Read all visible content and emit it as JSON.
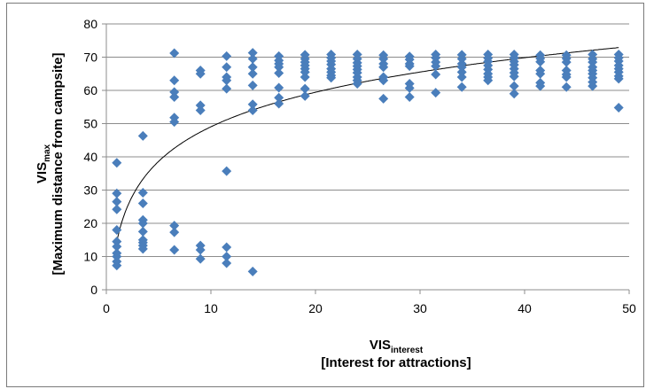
{
  "chart_data": {
    "type": "scatter",
    "xlabel_main": "VIS",
    "xlabel_sub": "interest",
    "xlabel_line2": "[Interest for attractions]",
    "ylabel_main": "VIS",
    "ylabel_sub": "max",
    "ylabel_line2": "[Maximum distance from campsite]",
    "xlim": [
      0,
      50
    ],
    "ylim": [
      0,
      80
    ],
    "x_ticks": [
      "0",
      "10",
      "20",
      "30",
      "40",
      "50"
    ],
    "y_ticks": [
      "0",
      "10",
      "20",
      "30",
      "40",
      "50",
      "60",
      "70",
      "80"
    ],
    "grid": "horizontal",
    "legend": "none",
    "marker_color": "#4a7ebb",
    "trendline": {
      "type": "logarithmic",
      "a": 15.0,
      "b": 14.5,
      "color": "#000000"
    },
    "points": [
      [
        1,
        38.2
      ],
      [
        1,
        29
      ],
      [
        1,
        26.5
      ],
      [
        1,
        24.2
      ],
      [
        1,
        18
      ],
      [
        1,
        14.5
      ],
      [
        1,
        13
      ],
      [
        1,
        11
      ],
      [
        1,
        10
      ],
      [
        1,
        8.5
      ],
      [
        1,
        7.3
      ],
      [
        3.5,
        46.3
      ],
      [
        3.5,
        29.2
      ],
      [
        3.5,
        26
      ],
      [
        3.5,
        21
      ],
      [
        3.5,
        20
      ],
      [
        3.5,
        17.5
      ],
      [
        3.5,
        15
      ],
      [
        3.5,
        14.2
      ],
      [
        3.5,
        13.3
      ],
      [
        3.5,
        12.3
      ],
      [
        6.5,
        71.2
      ],
      [
        6.5,
        63
      ],
      [
        6.5,
        59.5
      ],
      [
        6.5,
        58
      ],
      [
        6.5,
        51.8
      ],
      [
        6.5,
        50.5
      ],
      [
        6.5,
        19.3
      ],
      [
        6.5,
        17.3
      ],
      [
        6.5,
        12
      ],
      [
        9,
        66
      ],
      [
        9,
        65
      ],
      [
        9,
        55.5
      ],
      [
        9,
        54
      ],
      [
        9,
        13.3
      ],
      [
        9,
        12
      ],
      [
        9,
        9.3
      ],
      [
        11.5,
        70.3
      ],
      [
        11.5,
        67
      ],
      [
        11.5,
        64
      ],
      [
        11.5,
        63
      ],
      [
        11.5,
        60.5
      ],
      [
        11.5,
        35.7
      ],
      [
        11.5,
        12.8
      ],
      [
        11.5,
        10
      ],
      [
        11.5,
        8
      ],
      [
        14,
        71.3
      ],
      [
        14,
        69.5
      ],
      [
        14,
        67
      ],
      [
        14,
        65
      ],
      [
        14,
        61.5
      ],
      [
        14,
        55.8
      ],
      [
        14,
        54
      ],
      [
        14,
        5.5
      ],
      [
        16.5,
        70.3
      ],
      [
        16.5,
        69
      ],
      [
        16.5,
        68
      ],
      [
        16.5,
        67
      ],
      [
        16.5,
        65.2
      ],
      [
        16.5,
        60.8
      ],
      [
        16.5,
        57.8
      ],
      [
        16.5,
        56
      ],
      [
        19,
        70.7
      ],
      [
        19,
        69.5
      ],
      [
        19,
        68.5
      ],
      [
        19,
        67.5
      ],
      [
        19,
        66.5
      ],
      [
        19,
        65.5
      ],
      [
        19,
        64
      ],
      [
        19,
        60.5
      ],
      [
        19,
        58.3
      ],
      [
        21.5,
        70.8
      ],
      [
        21.5,
        69.8
      ],
      [
        21.5,
        68.8
      ],
      [
        21.5,
        67.8
      ],
      [
        21.5,
        66.5
      ],
      [
        21.5,
        65.5
      ],
      [
        21.5,
        64.5
      ],
      [
        21.5,
        63.8
      ],
      [
        24,
        70.8
      ],
      [
        24,
        69.5
      ],
      [
        24,
        68.3
      ],
      [
        24,
        67.3
      ],
      [
        24,
        66.3
      ],
      [
        24,
        65.3
      ],
      [
        24,
        64
      ],
      [
        24,
        63
      ],
      [
        24,
        62
      ],
      [
        26.5,
        70.6
      ],
      [
        26.5,
        69.5
      ],
      [
        26.5,
        68
      ],
      [
        26.5,
        67
      ],
      [
        26.5,
        64
      ],
      [
        26.5,
        63
      ],
      [
        26.5,
        57.5
      ],
      [
        29,
        70.2
      ],
      [
        29,
        69.3
      ],
      [
        29,
        68
      ],
      [
        29,
        67.3
      ],
      [
        29,
        62
      ],
      [
        29,
        60.7
      ],
      [
        29,
        58
      ],
      [
        31.5,
        70.8
      ],
      [
        31.5,
        69.8
      ],
      [
        31.5,
        68.5
      ],
      [
        31.5,
        67.3
      ],
      [
        31.5,
        64.8
      ],
      [
        31.5,
        59.3
      ],
      [
        34,
        70.7
      ],
      [
        34,
        69.5
      ],
      [
        34,
        68
      ],
      [
        34,
        67
      ],
      [
        34,
        65.5
      ],
      [
        34,
        64
      ],
      [
        34,
        61
      ],
      [
        36.5,
        70.8
      ],
      [
        36.5,
        69.7
      ],
      [
        36.5,
        68.7
      ],
      [
        36.5,
        67.5
      ],
      [
        36.5,
        66.3
      ],
      [
        36.5,
        65
      ],
      [
        36.5,
        64
      ],
      [
        36.5,
        63
      ],
      [
        39,
        70.8
      ],
      [
        39,
        69.8
      ],
      [
        39,
        68.7
      ],
      [
        39,
        67.7
      ],
      [
        39,
        66.5
      ],
      [
        39,
        65.3
      ],
      [
        39,
        64.2
      ],
      [
        39,
        61.3
      ],
      [
        39,
        59
      ],
      [
        41.5,
        70.6
      ],
      [
        41.5,
        69.6
      ],
      [
        41.5,
        68.6
      ],
      [
        41.5,
        66
      ],
      [
        41.5,
        65
      ],
      [
        41.5,
        62.3
      ],
      [
        41.5,
        61.3
      ],
      [
        44,
        70.6
      ],
      [
        44,
        69.6
      ],
      [
        44,
        68.5
      ],
      [
        44,
        66
      ],
      [
        44,
        64.8
      ],
      [
        44,
        64
      ],
      [
        44,
        61
      ],
      [
        46.5,
        70.8
      ],
      [
        46.5,
        69.5
      ],
      [
        46.5,
        68.5
      ],
      [
        46.5,
        67
      ],
      [
        46.5,
        66
      ],
      [
        46.5,
        65
      ],
      [
        46.5,
        63.8
      ],
      [
        46.5,
        62.5
      ],
      [
        46.5,
        61.3
      ],
      [
        49,
        70.8
      ],
      [
        49,
        69.8
      ],
      [
        49,
        68.8
      ],
      [
        49,
        67.5
      ],
      [
        49,
        66.5
      ],
      [
        49,
        65.5
      ],
      [
        49,
        64.3
      ],
      [
        49,
        63.5
      ],
      [
        49,
        54.8
      ]
    ]
  }
}
